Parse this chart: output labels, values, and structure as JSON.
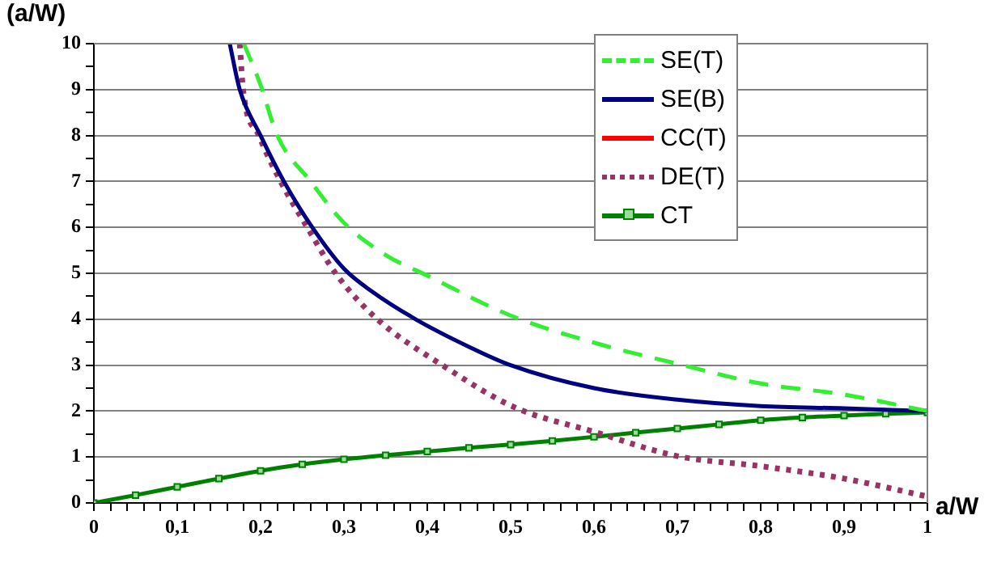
{
  "chart_data": {
    "type": "line",
    "xlabel": "a/W",
    "ylabel": "(a/W)",
    "xlim": [
      0,
      1
    ],
    "ylim": [
      0,
      10
    ],
    "xticks": [
      0,
      {
        "value": 0.02,
        "label": null
      },
      {
        "value": 0.04,
        "label": null
      },
      {
        "value": 0.06,
        "label": null
      },
      {
        "value": 0.08,
        "label": null
      },
      {
        "value": 0.1,
        "label": "0,1"
      },
      {
        "value": 0.12,
        "label": null
      },
      {
        "value": 0.14,
        "label": null
      },
      {
        "value": 0.16,
        "label": null
      },
      {
        "value": 0.18,
        "label": null
      },
      {
        "value": 0.2,
        "label": "0,2"
      },
      {
        "value": 0.22,
        "label": null
      },
      {
        "value": 0.24,
        "label": null
      },
      {
        "value": 0.26,
        "label": null
      },
      {
        "value": 0.28,
        "label": null
      },
      {
        "value": 0.3,
        "label": "0,3"
      },
      {
        "value": 0.32,
        "label": null
      },
      {
        "value": 0.34,
        "label": null
      },
      {
        "value": 0.36,
        "label": null
      },
      {
        "value": 0.38,
        "label": null
      },
      {
        "value": 0.4,
        "label": "0,4"
      },
      {
        "value": 0.42,
        "label": null
      },
      {
        "value": 0.44,
        "label": null
      },
      {
        "value": 0.46,
        "label": null
      },
      {
        "value": 0.48,
        "label": null
      },
      {
        "value": 0.5,
        "label": "0,5"
      },
      {
        "value": 0.52,
        "label": null
      },
      {
        "value": 0.54,
        "label": null
      },
      {
        "value": 0.56,
        "label": null
      },
      {
        "value": 0.58,
        "label": null
      },
      {
        "value": 0.6,
        "label": "0,6"
      },
      {
        "value": 0.62,
        "label": null
      },
      {
        "value": 0.64,
        "label": null
      },
      {
        "value": 0.66,
        "label": null
      },
      {
        "value": 0.68,
        "label": null
      },
      {
        "value": 0.7,
        "label": "0,7"
      },
      {
        "value": 0.72,
        "label": null
      },
      {
        "value": 0.74,
        "label": null
      },
      {
        "value": 0.76,
        "label": null
      },
      {
        "value": 0.78,
        "label": null
      },
      {
        "value": 0.8,
        "label": "0,8"
      },
      {
        "value": 0.82,
        "label": null
      },
      {
        "value": 0.84,
        "label": null
      },
      {
        "value": 0.86,
        "label": null
      },
      {
        "value": 0.88,
        "label": null
      },
      {
        "value": 0.9,
        "label": "0,9"
      },
      {
        "value": 0.92,
        "label": null
      },
      {
        "value": 0.94,
        "label": null
      },
      {
        "value": 0.96,
        "label": null
      },
      {
        "value": 0.98,
        "label": null
      },
      1
    ],
    "yticks": [
      0,
      {
        "value": 0.5,
        "label": null
      },
      1,
      {
        "value": 1.5,
        "label": null
      },
      2,
      {
        "value": 2.5,
        "label": null
      },
      3,
      {
        "value": 3.5,
        "label": null
      },
      4,
      {
        "value": 4.5,
        "label": null
      },
      5,
      {
        "value": 5.5,
        "label": null
      },
      6,
      {
        "value": 6.5,
        "label": null
      },
      7,
      {
        "value": 7.5,
        "label": null
      },
      8,
      {
        "value": 8.5,
        "label": null
      },
      9,
      {
        "value": 9.5,
        "label": null
      },
      10
    ],
    "grid": "y",
    "legend": "top right",
    "series": [
      {
        "name": "SE(T)",
        "color": "#33ee33",
        "line_style": "dashed",
        "marker": "none",
        "x": [
          0.18,
          0.2,
          0.22,
          0.26,
          0.3,
          0.35,
          0.4,
          0.5,
          0.6,
          0.7,
          0.8,
          0.9,
          1
        ],
        "values": [
          10,
          9.1,
          8,
          7,
          6.1,
          5.4,
          4.95,
          4.08,
          3.49,
          3.03,
          2.6,
          2.36,
          2
        ]
      },
      {
        "name": "SE(B)",
        "color": "#000080",
        "line_style": "solid",
        "marker": "none",
        "x": [
          0.163,
          0.175,
          0.2,
          0.228,
          0.262,
          0.3,
          0.334,
          0.386,
          0.45,
          0.5,
          0.6,
          0.7,
          0.8,
          0.9,
          1
        ],
        "values": [
          10,
          9,
          8,
          7,
          6,
          5.1,
          4.6,
          4,
          3.4,
          3,
          2.5,
          2.25,
          2.11,
          2.06,
          2
        ]
      },
      {
        "name": "CC(T)",
        "color": "#ff0000",
        "line_style": "solid",
        "marker": "none"
      },
      {
        "name": "DE(T)",
        "color": "#993366",
        "line_style": "dotted",
        "marker": "none",
        "x": [
          0.175,
          0.179,
          0.198,
          0.224,
          0.256,
          0.29,
          0.34,
          0.418,
          0.505,
          0.6,
          0.7,
          0.8,
          0.9,
          1
        ],
        "values": [
          10,
          9,
          8,
          7,
          6,
          5,
          4,
          3,
          2.08,
          1.55,
          1.02,
          0.8,
          0.53,
          0.14
        ]
      },
      {
        "name": "CT",
        "color": "#008000",
        "line_style": "solid",
        "marker": "square",
        "x": [
          0,
          0.05,
          0.1,
          0.15,
          0.2,
          0.25,
          0.3,
          0.35,
          0.4,
          0.45,
          0.5,
          0.55,
          0.6,
          0.65,
          0.7,
          0.75,
          0.8,
          0.85,
          0.9,
          0.95,
          1
        ],
        "values": [
          0,
          0.17,
          0.35,
          0.53,
          0.7,
          0.84,
          0.95,
          1.04,
          1.12,
          1.2,
          1.27,
          1.35,
          1.44,
          1.53,
          1.62,
          1.71,
          1.8,
          1.86,
          1.9,
          1.94,
          1.97
        ]
      }
    ]
  }
}
